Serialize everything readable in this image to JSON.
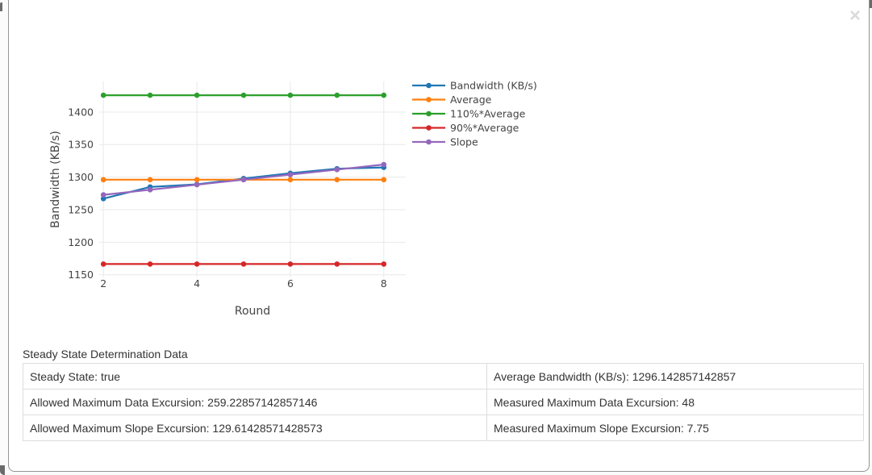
{
  "modal": {
    "close_label": "×"
  },
  "chart_data": {
    "type": "line",
    "title": "",
    "xlabel": "Round",
    "ylabel": "Bandwidth (KB/s)",
    "x": [
      2,
      3,
      4,
      5,
      6,
      7,
      8
    ],
    "series": [
      {
        "name": "Bandwidth (KB/s)",
        "color": "#1f77b4",
        "values": [
          1267,
          1285,
          1289,
          1298,
          1306,
          1313,
          1315
        ]
      },
      {
        "name": "Average",
        "color": "#ff7f0e",
        "values": [
          1296.1429,
          1296.1429,
          1296.1429,
          1296.1429,
          1296.1429,
          1296.1429,
          1296.1429
        ]
      },
      {
        "name": "110%*Average",
        "color": "#2ca02c",
        "values": [
          1425.7571,
          1425.7571,
          1425.7571,
          1425.7571,
          1425.7571,
          1425.7571,
          1425.7571
        ]
      },
      {
        "name": "90%*Average",
        "color": "#d62728",
        "values": [
          1166.5286,
          1166.5286,
          1166.5286,
          1166.5286,
          1166.5286,
          1166.5286,
          1166.5286
        ]
      },
      {
        "name": "Slope",
        "color": "#9467bd",
        "values": [
          1272.8929,
          1280.6429,
          1288.3929,
          1296.1429,
          1303.8929,
          1311.6429,
          1319.3929
        ]
      }
    ],
    "yticks": [
      1150,
      1200,
      1250,
      1300,
      1350,
      1400
    ],
    "xticks": [
      2,
      4,
      6,
      8
    ],
    "xlim": [
      1.91,
      8.47
    ],
    "ylim": [
      1146,
      1447
    ],
    "grid": true,
    "legend_position": "right",
    "text_color": "#444",
    "grid_color": "#e9e9e9"
  },
  "section": {
    "title": "Steady State Determination Data"
  },
  "table": {
    "rows": [
      [
        "Steady State: true",
        "Average Bandwidth (KB/s): 1296.142857142857"
      ],
      [
        "Allowed Maximum Data Excursion: 259.22857142857146",
        "Measured Maximum Data Excursion: 48"
      ],
      [
        "Allowed Maximum Slope Excursion: 129.61428571428573",
        "Measured Maximum Slope Excursion: 7.75"
      ]
    ]
  }
}
